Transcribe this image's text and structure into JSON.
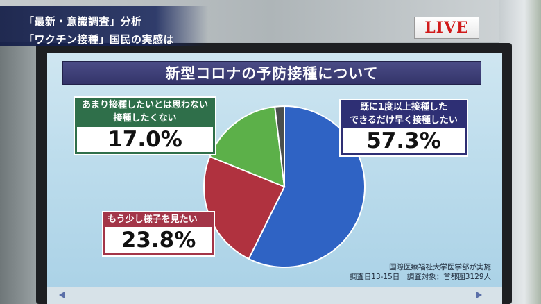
{
  "overlay": {
    "headline_line1": "「最新・意識調査」分析",
    "headline_line2": "「ワクチン接種」国民の実感は",
    "live_badge": "LIVE"
  },
  "chart_data": {
    "type": "pie",
    "title": "新型コロナの予防接種について",
    "slices": [
      {
        "label_line1": "既に1度以上接種した",
        "label_line2": "できるだけ早く接種したい",
        "value": 57.3,
        "display": "57.3%",
        "color": "#2f63c4"
      },
      {
        "label_line1": "もう少し様子を見たい",
        "label_line2": "",
        "value": 23.8,
        "display": "23.8%",
        "color": "#b0323f"
      },
      {
        "label_line1": "あまり接種したいとは思わない",
        "label_line2": "接種したくない",
        "value": 17.0,
        "display": "17.0%",
        "color": "#5cb049"
      },
      {
        "label_line1": "",
        "label_line2": "",
        "value": 1.9,
        "display": "",
        "color": "#4a4f4d"
      }
    ],
    "source_line1": "国際医療福祉大学医学部が実施",
    "source_line2": "調査日13-15日　調査対象：首都圏3129人"
  }
}
